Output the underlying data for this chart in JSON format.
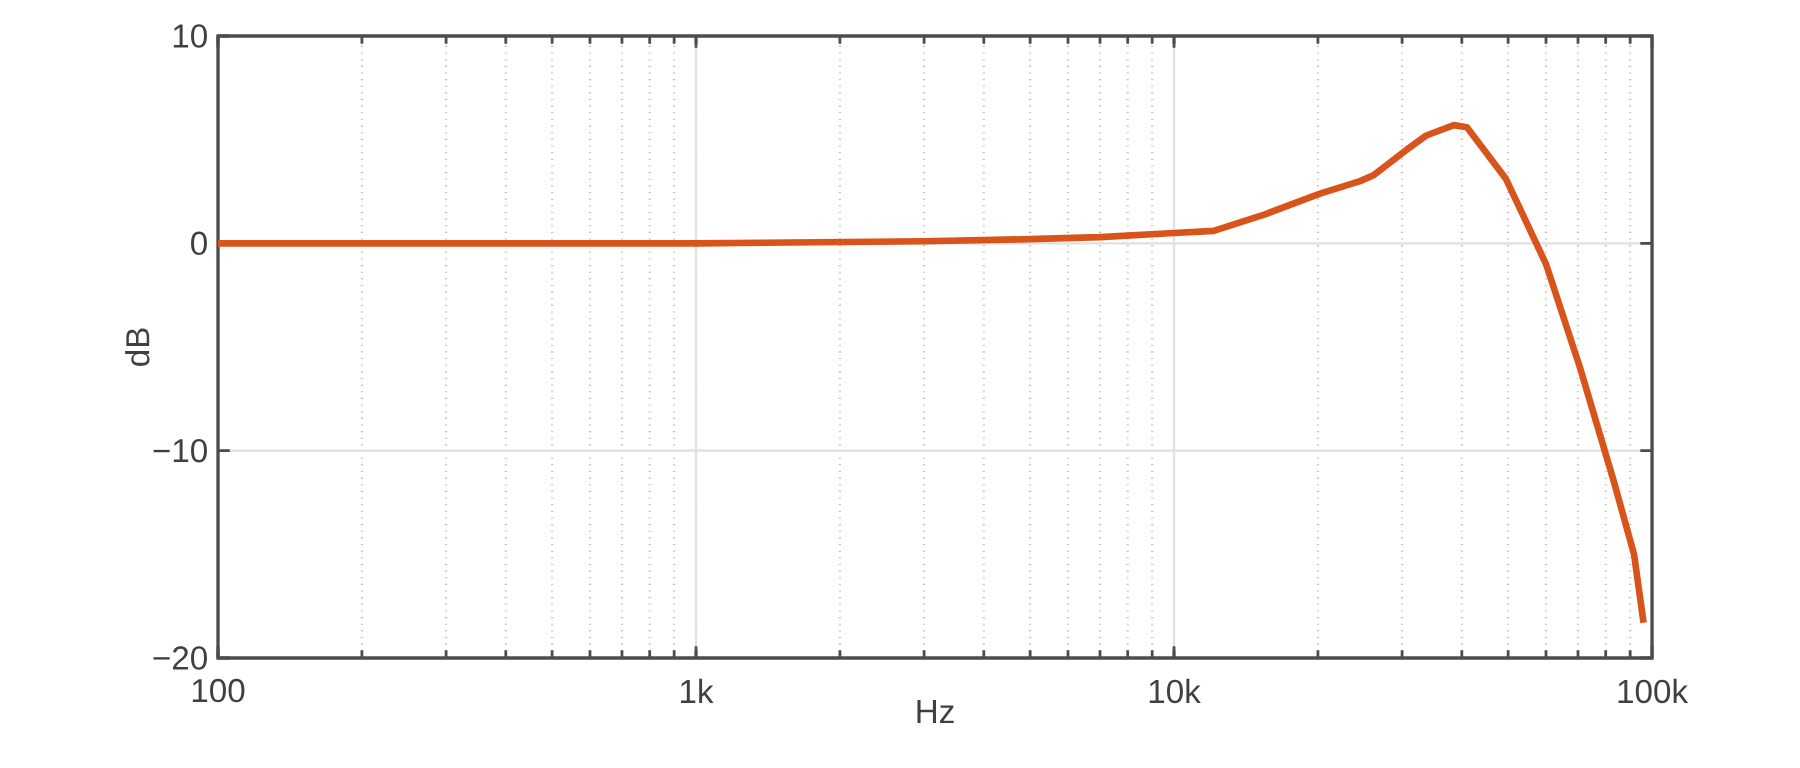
{
  "chart_data": {
    "type": "line",
    "xlabel": "Hz",
    "ylabel": "dB",
    "log": "x",
    "grid": true,
    "marker": "none",
    "line_style": "solid",
    "xlim": [
      100,
      100000
    ],
    "xticks": [
      {
        "value": 100,
        "label": "100"
      },
      {
        "value": 1000,
        "label": "1k"
      },
      {
        "value": 10000,
        "label": "10k"
      },
      {
        "value": 100000,
        "label": "100k"
      }
    ],
    "ylim": [
      -20,
      10
    ],
    "yticks": [
      {
        "value": -20,
        "label": "−20"
      },
      {
        "value": -10,
        "label": "−10"
      },
      0,
      10
    ],
    "series": [
      {
        "color": "#d9541a",
        "x": [
          100,
          300,
          1000,
          3000,
          5000,
          7000,
          10000,
          12100,
          15500,
          20200,
          24500,
          26200,
          30600,
          33700,
          38500,
          41000,
          49500,
          60000,
          70700,
          83000,
          91700,
          96000
        ],
        "values": [
          0,
          0,
          0,
          0.1,
          0.2,
          0.3,
          0.5,
          0.6,
          1.4,
          2.4,
          3.0,
          3.3,
          4.5,
          5.2,
          5.7,
          5.6,
          3.1,
          -1.0,
          -6.0,
          -11.4,
          -15.0,
          -18.3
        ]
      }
    ]
  }
}
